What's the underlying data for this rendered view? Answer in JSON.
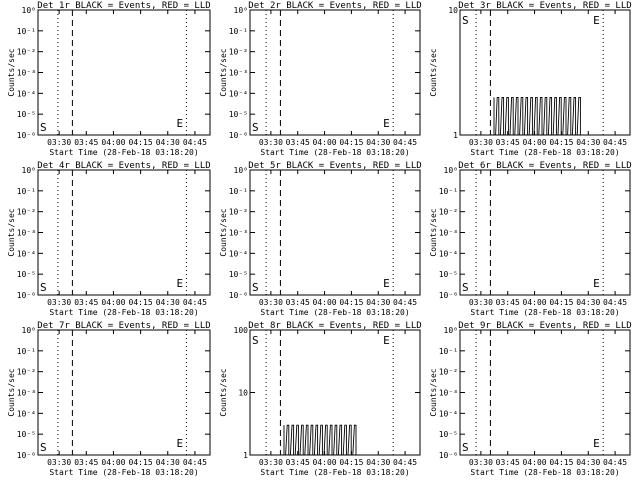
{
  "figure": {
    "xlabel": "Start Time (28-Feb-18 03:18:20)",
    "ylabel": "Counts/sec",
    "x_tick_labels": [
      "03:30",
      "03:45",
      "04:00",
      "04:15",
      "04:30",
      "04:45"
    ],
    "colors": {
      "events": "#000000",
      "lld": "#ff0000",
      "background": "#ffffff"
    }
  },
  "chart_data": [
    {
      "type": "line",
      "y_scale": "log",
      "title": "Det 1r BLACK = Events, RED = LLD",
      "y_tick_labels": [
        "10⁰",
        "10⁻¹",
        "10⁻²",
        "10⁻³",
        "10⁻⁴",
        "10⁻⁵",
        "10⁻⁶"
      ],
      "annotations": [
        "S",
        "E"
      ],
      "x_tick_values": [
        11.67,
        26.67,
        41.67,
        56.67,
        71.67,
        86.67
      ],
      "xlim": [
        0,
        95
      ],
      "markers": {
        "dotted": [
          11,
          82
        ],
        "dashed": [
          19
        ]
      },
      "series": []
    },
    {
      "type": "line",
      "y_scale": "log",
      "title": "Det 2r BLACK = Events, RED = LLD",
      "y_tick_labels": [
        "10⁰",
        "10⁻¹",
        "10⁻²",
        "10⁻³",
        "10⁻⁴",
        "10⁻⁵",
        "10⁻⁶"
      ],
      "annotations": [
        "S",
        "E"
      ],
      "x_tick_values": [
        11.67,
        26.67,
        41.67,
        56.67,
        71.67,
        86.67
      ],
      "xlim": [
        0,
        95
      ],
      "markers": {
        "dotted": [
          9,
          80
        ],
        "dashed": [
          17
        ]
      },
      "series": []
    },
    {
      "type": "line",
      "y_scale": "log",
      "title": "Det 3r BLACK = Events, RED = LLD",
      "y_tick_labels": [
        "10",
        "1"
      ],
      "annotations": [
        "S",
        "E"
      ],
      "x_tick_values": [
        11.67,
        26.67,
        41.67,
        56.67,
        71.67,
        86.67
      ],
      "xlim": [
        0,
        95
      ],
      "markers": {
        "dotted": [
          9,
          80
        ],
        "dashed": [
          17
        ]
      },
      "series": [
        {
          "color": "#000000",
          "x_range": [
            19,
            68
          ],
          "values": [
            1,
            2
          ]
        }
      ]
    },
    {
      "type": "line",
      "y_scale": "log",
      "title": "Det 4r BLACK = Events, RED = LLD",
      "y_tick_labels": [
        "10⁰",
        "10⁻¹",
        "10⁻²",
        "10⁻³",
        "10⁻⁴",
        "10⁻⁵",
        "10⁻⁶"
      ],
      "annotations": [
        "S",
        "E"
      ],
      "x_tick_values": [
        11.67,
        26.67,
        41.67,
        56.67,
        71.67,
        86.67
      ],
      "xlim": [
        0,
        95
      ],
      "markers": {
        "dotted": [
          11,
          82
        ],
        "dashed": [
          19
        ]
      },
      "series": []
    },
    {
      "type": "line",
      "y_scale": "log",
      "title": "Det 5r BLACK = Events, RED = LLD",
      "y_tick_labels": [
        "10⁰",
        "10⁻¹",
        "10⁻²",
        "10⁻³",
        "10⁻⁴",
        "10⁻⁵",
        "10⁻⁶"
      ],
      "annotations": [
        "S",
        "E"
      ],
      "x_tick_values": [
        11.67,
        26.67,
        41.67,
        56.67,
        71.67,
        86.67
      ],
      "xlim": [
        0,
        95
      ],
      "markers": {
        "dotted": [
          9,
          80
        ],
        "dashed": [
          17
        ]
      },
      "series": []
    },
    {
      "type": "line",
      "y_scale": "log",
      "title": "Det 6r BLACK = Events, RED = LLD",
      "y_tick_labels": [
        "10⁰",
        "10⁻¹",
        "10⁻²",
        "10⁻³",
        "10⁻⁴",
        "10⁻⁵",
        "10⁻⁶"
      ],
      "annotations": [
        "S",
        "E"
      ],
      "x_tick_values": [
        11.67,
        26.67,
        41.67,
        56.67,
        71.67,
        86.67
      ],
      "xlim": [
        0,
        95
      ],
      "markers": {
        "dotted": [
          9,
          80
        ],
        "dashed": [
          17
        ]
      },
      "series": []
    },
    {
      "type": "line",
      "y_scale": "log",
      "title": "Det 7r BLACK = Events, RED = LLD",
      "y_tick_labels": [
        "10⁰",
        "10⁻¹",
        "10⁻²",
        "10⁻³",
        "10⁻⁴",
        "10⁻⁵",
        "10⁻⁶"
      ],
      "annotations": [
        "S",
        "E"
      ],
      "x_tick_values": [
        11.67,
        26.67,
        41.67,
        56.67,
        71.67,
        86.67
      ],
      "xlim": [
        0,
        95
      ],
      "markers": {
        "dotted": [
          11,
          82
        ],
        "dashed": [
          19
        ]
      },
      "series": []
    },
    {
      "type": "line",
      "y_scale": "log",
      "title": "Det 8r BLACK = Events, RED = LLD",
      "y_tick_labels": [
        "100",
        "10",
        "1"
      ],
      "annotations": [
        "S",
        "E"
      ],
      "x_tick_values": [
        11.67,
        26.67,
        41.67,
        56.67,
        71.67,
        86.67
      ],
      "xlim": [
        0,
        95
      ],
      "markers": {
        "dotted": [
          9,
          80
        ],
        "dashed": [
          17
        ]
      },
      "series": [
        {
          "color": "#000000",
          "x_range": [
            19,
            61
          ],
          "values": [
            1,
            3
          ]
        }
      ]
    },
    {
      "type": "line",
      "y_scale": "log",
      "title": "Det 9r BLACK = Events, RED = LLD",
      "y_tick_labels": [
        "10⁰",
        "10⁻¹",
        "10⁻²",
        "10⁻³",
        "10⁻⁴",
        "10⁻⁵",
        "10⁻⁶"
      ],
      "annotations": [
        "S",
        "E"
      ],
      "x_tick_values": [
        11.67,
        26.67,
        41.67,
        56.67,
        71.67,
        86.67
      ],
      "xlim": [
        0,
        95
      ],
      "markers": {
        "dotted": [
          9,
          80
        ],
        "dashed": [
          17
        ]
      },
      "series": []
    }
  ]
}
